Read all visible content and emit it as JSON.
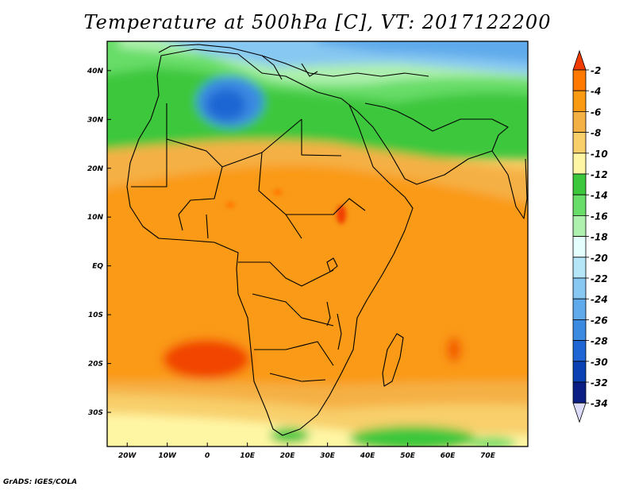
{
  "title": "Temperature at 500hPa [C], VT: 2017122200",
  "credit": "GrADS: IGES/COLA",
  "map": {
    "region": "Africa",
    "lon_range": [
      -25,
      80
    ],
    "lat_range": [
      -37,
      46
    ],
    "lon_ticks": [
      {
        "value": -20,
        "label": "20W"
      },
      {
        "value": -10,
        "label": "10W"
      },
      {
        "value": 0,
        "label": "0"
      },
      {
        "value": 10,
        "label": "10E"
      },
      {
        "value": 20,
        "label": "20E"
      },
      {
        "value": 30,
        "label": "30E"
      },
      {
        "value": 40,
        "label": "40E"
      },
      {
        "value": 50,
        "label": "50E"
      },
      {
        "value": 60,
        "label": "60E"
      },
      {
        "value": 70,
        "label": "70E"
      }
    ],
    "lat_ticks": [
      {
        "value": 40,
        "label": "40N"
      },
      {
        "value": 30,
        "label": "30N"
      },
      {
        "value": 20,
        "label": "20N"
      },
      {
        "value": 10,
        "label": "10N"
      },
      {
        "value": 0,
        "label": "EQ"
      },
      {
        "value": -10,
        "label": "10S"
      },
      {
        "value": -20,
        "label": "20S"
      },
      {
        "value": -30,
        "label": "30S"
      }
    ]
  },
  "colorbar": {
    "labels": [
      "-2",
      "-4",
      "-6",
      "-8",
      "-10",
      "-12",
      "-14",
      "-16",
      "-18",
      "-20",
      "-22",
      "-24",
      "-26",
      "-28",
      "-30",
      "-32",
      "-34"
    ],
    "colors": [
      "#f03c00",
      "#ff7800",
      "#fa9a12",
      "#f5b045",
      "#f8cf6a",
      "#fff6a4",
      "#3dc73d",
      "#68dd68",
      "#aef0ae",
      "#e4fdfd",
      "#b4e6f7",
      "#87c8f2",
      "#5eaaeb",
      "#3a8ae2",
      "#1d66d3",
      "#0a42b3",
      "#0a1e84",
      "#dcdcfa"
    ]
  }
}
